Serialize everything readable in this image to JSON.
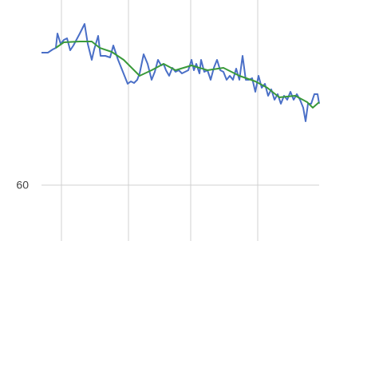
{
  "chart_data": {
    "type": "line",
    "xlim": [
      0,
      348
    ],
    "ylim": [
      53,
      83.2
    ],
    "yticks": [
      60
    ],
    "xgrid": [
      25,
      109,
      187,
      271
    ],
    "grid": true,
    "series": [
      {
        "color": "#4a6fc7",
        "x": [
          0,
          8,
          14,
          18,
          20,
          24,
          28,
          32,
          36,
          40,
          48,
          54,
          58,
          63,
          66,
          71,
          74,
          80,
          86,
          90,
          96,
          102,
          108,
          112,
          116,
          120,
          123,
          128,
          133,
          138,
          142,
          146,
          150,
          153,
          156,
          160,
          164,
          168,
          172,
          176,
          180,
          184,
          188,
          191,
          194,
          198,
          200,
          204,
          208,
          212,
          216,
          220,
          224,
          228,
          232,
          236,
          240,
          244,
          248,
          252,
          256,
          260,
          264,
          268,
          272,
          276,
          280,
          284,
          288,
          292,
          296,
          300,
          304,
          308,
          312,
          316,
          320,
          324,
          328,
          331,
          334,
          338,
          342,
          346,
          348
        ],
        "values": [
          76.6,
          76.6,
          77,
          77.2,
          79,
          77.7,
          78.2,
          78.4,
          76.9,
          77.5,
          79,
          80.2,
          77.7,
          75.7,
          77,
          78.7,
          76.2,
          76.2,
          76,
          77.5,
          75.7,
          74.2,
          72.7,
          73,
          72.8,
          73.2,
          74,
          76.4,
          75.2,
          73.2,
          74.2,
          75.7,
          75,
          75.2,
          74.4,
          73.7,
          74.7,
          74.2,
          74.4,
          74,
          74.2,
          74.4,
          75.7,
          74.4,
          75.2,
          74,
          75.7,
          74.2,
          74.4,
          73.2,
          74.7,
          75.7,
          74.4,
          74.2,
          73.2,
          73.7,
          73.2,
          74.6,
          73.2,
          76.2,
          73.2,
          73.2,
          73.4,
          71.7,
          73.7,
          72.2,
          72.7,
          71.2,
          72,
          70.7,
          71.4,
          70.2,
          71.2,
          70.7,
          71.7,
          70.7,
          71.4,
          70.7,
          69.7,
          68,
          70.2,
          70.2,
          71.4,
          71.4,
          70.2
        ]
      },
      {
        "color": "#3a9a3a",
        "x": [
          18,
          28,
          48,
          63,
          73,
          88,
          103,
          113,
          123,
          138,
          153,
          168,
          188,
          208,
          228,
          248,
          268,
          283,
          298,
          318,
          333,
          340,
          348
        ],
        "values": [
          77.2,
          77.9,
          78,
          78,
          77.2,
          76.7,
          75.7,
          74.7,
          73.7,
          74.4,
          75.2,
          74.4,
          75,
          74.4,
          74.7,
          73.7,
          73,
          72.2,
          71,
          71.2,
          70.4,
          69.7,
          70.4
        ]
      }
    ]
  }
}
